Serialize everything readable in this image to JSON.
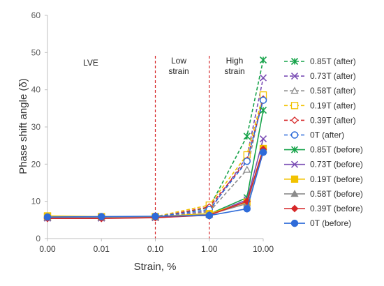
{
  "chart_data": {
    "type": "line",
    "title": "",
    "xlabel": "Strain, %",
    "ylabel": "Phase shift angle (δ)",
    "x_scale": "log",
    "xticks": [
      "0.00",
      "0.01",
      "0.10",
      "1.00",
      "10.00"
    ],
    "ylim": [
      0,
      60
    ],
    "yticks": [
      "0",
      "10",
      "20",
      "30",
      "40",
      "50",
      "60"
    ],
    "grid": false,
    "legend_position": "right",
    "regions": [
      {
        "label": "LVE"
      },
      {
        "label": "Low strain"
      },
      {
        "label": "High strain"
      }
    ],
    "boundaries": [
      0.1,
      1.0
    ],
    "boundary_color": "#d62728",
    "x": [
      0.001,
      0.01,
      0.1,
      1.0,
      5.0,
      10.0
    ],
    "series": [
      {
        "name": "0.85T (after)",
        "color": "#17a34a",
        "style": "dashed",
        "marker": "asterisk",
        "values": [
          5.6,
          5.6,
          5.8,
          8.3,
          27.5,
          48.0
        ]
      },
      {
        "name": "0.73T (after)",
        "color": "#7b4fb5",
        "style": "dashed",
        "marker": "x",
        "values": [
          5.5,
          5.5,
          5.7,
          7.4,
          22.0,
          43.2
        ]
      },
      {
        "name": "0.58T (after)",
        "color": "#8c8c8c",
        "style": "dashed",
        "marker": "triangle-open",
        "values": [
          5.6,
          5.6,
          5.7,
          7.2,
          18.5,
          38.5
        ]
      },
      {
        "name": "0.19T (after)",
        "color": "#f2c200",
        "style": "dashed",
        "marker": "square-open",
        "values": [
          6.0,
          5.8,
          5.9,
          9.0,
          22.5,
          38.6
        ]
      },
      {
        "name": "0.39T (after)",
        "color": "#d62728",
        "style": "dashed",
        "marker": "diamond-open",
        "values": [
          5.5,
          5.5,
          5.7,
          8.5,
          21.0,
          37.5
        ]
      },
      {
        "name": "0T (after)",
        "color": "#2e6bd9",
        "style": "dashed",
        "marker": "circle-open",
        "values": [
          5.7,
          5.8,
          5.9,
          7.8,
          20.8,
          37.2
        ]
      },
      {
        "name": "0.85T (before)",
        "color": "#17a34a",
        "style": "solid",
        "marker": "asterisk",
        "values": [
          5.6,
          5.6,
          5.7,
          6.6,
          11.0,
          34.5
        ]
      },
      {
        "name": "0.73T (before)",
        "color": "#7b4fb5",
        "style": "solid",
        "marker": "x",
        "values": [
          5.5,
          5.5,
          5.6,
          6.4,
          10.4,
          26.8
        ]
      },
      {
        "name": "0.19T (before)",
        "color": "#f2c200",
        "style": "solid",
        "marker": "square",
        "values": [
          6.1,
          5.9,
          5.9,
          6.7,
          9.8,
          24.2
        ]
      },
      {
        "name": "0.58T (before)",
        "color": "#8c8c8c",
        "style": "solid",
        "marker": "triangle",
        "values": [
          5.6,
          5.6,
          5.7,
          6.5,
          9.4,
          23.8
        ]
      },
      {
        "name": "0.39T (before)",
        "color": "#d62728",
        "style": "solid",
        "marker": "diamond",
        "values": [
          5.4,
          5.4,
          5.6,
          6.3,
          10.0,
          24.0
        ]
      },
      {
        "name": "0T (before)",
        "color": "#2e6bd9",
        "style": "solid",
        "marker": "circle",
        "values": [
          5.8,
          5.9,
          6.0,
          6.2,
          8.0,
          23.2
        ]
      }
    ]
  }
}
